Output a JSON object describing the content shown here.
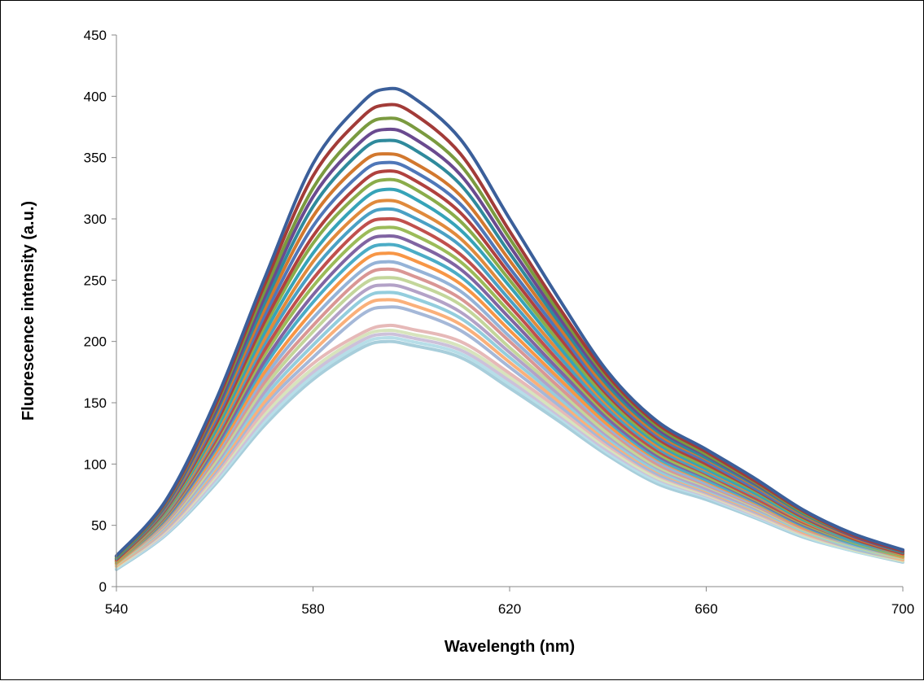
{
  "chart_data": {
    "type": "line",
    "title": "",
    "xlabel": "Wavelength (nm)",
    "ylabel": "Fluorescence intensity (a.u.)",
    "xlim": [
      540,
      700
    ],
    "ylim": [
      0,
      450
    ],
    "xticks": [
      540,
      580,
      620,
      660,
      700
    ],
    "yticks": [
      0,
      50,
      100,
      150,
      200,
      250,
      300,
      350,
      400,
      450
    ],
    "grid": false,
    "legend": "none",
    "x": [
      540,
      550,
      560,
      570,
      580,
      590,
      595,
      600,
      610,
      620,
      630,
      640,
      650,
      660,
      670,
      680,
      690,
      700
    ],
    "series": [
      {
        "color": "#3b5f9a",
        "values": [
          25,
          70,
          150,
          250,
          345,
          395,
          406,
          400,
          365,
          300,
          235,
          175,
          135,
          112,
          88,
          62,
          43,
          30
        ]
      },
      {
        "color": "#a23b38",
        "values": [
          25,
          69,
          147,
          245,
          335,
          383,
          393,
          387,
          353,
          290,
          228,
          172,
          133,
          110,
          86,
          61,
          42,
          29
        ]
      },
      {
        "color": "#7a9a3f",
        "values": [
          24,
          68,
          145,
          240,
          325,
          373,
          382,
          376,
          344,
          284,
          224,
          170,
          131,
          108,
          85,
          60,
          42,
          29
        ]
      },
      {
        "color": "#6a4a8f",
        "values": [
          24,
          67,
          142,
          235,
          318,
          364,
          373,
          367,
          336,
          278,
          220,
          167,
          129,
          107,
          84,
          60,
          41,
          29
        ]
      },
      {
        "color": "#2f8a9c",
        "values": [
          23,
          66,
          140,
          230,
          310,
          356,
          364,
          358,
          328,
          272,
          216,
          164,
          127,
          105,
          83,
          59,
          41,
          28
        ]
      },
      {
        "color": "#d2782e",
        "values": [
          23,
          65,
          137,
          225,
          302,
          346,
          353,
          347,
          319,
          266,
          212,
          161,
          125,
          104,
          82,
          58,
          40,
          28
        ]
      },
      {
        "color": "#4f77b8",
        "values": [
          23,
          64,
          134,
          220,
          294,
          338,
          346,
          340,
          312,
          260,
          208,
          158,
          123,
          102,
          80,
          57,
          40,
          28
        ]
      },
      {
        "color": "#b0413e",
        "values": [
          22,
          63,
          131,
          215,
          286,
          330,
          339,
          333,
          305,
          255,
          204,
          156,
          121,
          100,
          79,
          56,
          39,
          27
        ]
      },
      {
        "color": "#8aac4a",
        "values": [
          22,
          62,
          129,
          211,
          280,
          323,
          332,
          326,
          298,
          250,
          200,
          153,
          119,
          98,
          78,
          55,
          39,
          27
        ]
      },
      {
        "color": "#36a3b8",
        "values": [
          22,
          61,
          126,
          206,
          272,
          315,
          324,
          318,
          291,
          245,
          196,
          150,
          117,
          96,
          76,
          54,
          38,
          27
        ]
      },
      {
        "color": "#e08a3c",
        "values": [
          21,
          60,
          123,
          201,
          265,
          307,
          315,
          309,
          284,
          239,
          192,
          148,
          115,
          95,
          75,
          53,
          38,
          26
        ]
      },
      {
        "color": "#4aa0c4",
        "values": [
          21,
          59,
          121,
          197,
          258,
          300,
          308,
          302,
          278,
          234,
          188,
          145,
          113,
          93,
          74,
          53,
          37,
          26
        ]
      },
      {
        "color": "#c0504d",
        "values": [
          21,
          58,
          118,
          192,
          251,
          293,
          300,
          295,
          271,
          229,
          184,
          142,
          111,
          92,
          72,
          52,
          37,
          26
        ]
      },
      {
        "color": "#9bbb59",
        "values": [
          20,
          57,
          116,
          188,
          245,
          286,
          293,
          288,
          265,
          224,
          181,
          140,
          109,
          90,
          71,
          51,
          36,
          25
        ]
      },
      {
        "color": "#8064a2",
        "values": [
          20,
          56,
          113,
          183,
          238,
          279,
          286,
          281,
          259,
          219,
          177,
          137,
          107,
          89,
          70,
          50,
          36,
          25
        ]
      },
      {
        "color": "#4bacc6",
        "values": [
          20,
          55,
          111,
          179,
          232,
          272,
          279,
          274,
          253,
          214,
          174,
          135,
          105,
          87,
          69,
          49,
          35,
          25
        ]
      },
      {
        "color": "#f79646",
        "values": [
          19,
          54,
          108,
          174,
          225,
          265,
          272,
          267,
          247,
          209,
          170,
          132,
          104,
          86,
          68,
          48,
          35,
          24
        ]
      },
      {
        "color": "#95b3d7",
        "values": [
          19,
          53,
          106,
          170,
          219,
          258,
          265,
          260,
          241,
          204,
          167,
          130,
          102,
          84,
          67,
          48,
          34,
          24
        ]
      },
      {
        "color": "#d99694",
        "values": [
          19,
          52,
          104,
          166,
          213,
          252,
          259,
          254,
          235,
          200,
          163,
          128,
          100,
          83,
          66,
          47,
          34,
          24
        ]
      },
      {
        "color": "#c3d69b",
        "values": [
          18,
          51,
          101,
          162,
          208,
          246,
          252,
          248,
          230,
          195,
          160,
          125,
          98,
          82,
          65,
          46,
          33,
          23
        ]
      },
      {
        "color": "#b3a2c7",
        "values": [
          18,
          50,
          99,
          158,
          202,
          240,
          246,
          242,
          224,
          191,
          157,
          123,
          97,
          80,
          64,
          46,
          33,
          23
        ]
      },
      {
        "color": "#93cddd",
        "values": [
          18,
          49,
          97,
          154,
          197,
          234,
          240,
          236,
          219,
          187,
          154,
          121,
          95,
          79,
          63,
          45,
          32,
          23
        ]
      },
      {
        "color": "#fab07a",
        "values": [
          17,
          48,
          95,
          150,
          192,
          228,
          234,
          230,
          214,
          183,
          151,
          119,
          94,
          78,
          62,
          44,
          32,
          22
        ]
      },
      {
        "color": "#a5b8d8",
        "values": [
          17,
          47,
          93,
          147,
          187,
          222,
          228,
          225,
          209,
          179,
          148,
          117,
          92,
          77,
          61,
          44,
          31,
          22
        ]
      },
      {
        "color": "#e6b9b8",
        "values": [
          17,
          46,
          91,
          143,
          182,
          207,
          213,
          210,
          200,
          174,
          145,
          115,
          91,
          76,
          60,
          43,
          31,
          22
        ]
      },
      {
        "color": "#d7e4bd",
        "values": [
          16,
          45,
          89,
          140,
          178,
          204,
          209,
          206,
          196,
          171,
          142,
          113,
          89,
          75,
          59,
          42,
          30,
          21
        ]
      },
      {
        "color": "#ccc1da",
        "values": [
          16,
          44,
          87,
          137,
          175,
          201,
          206,
          203,
          193,
          168,
          140,
          111,
          88,
          74,
          58,
          42,
          30,
          21
        ]
      },
      {
        "color": "#b7dee8",
        "values": [
          15,
          43,
          85,
          134,
          172,
          198,
          203,
          200,
          190,
          165,
          138,
          109,
          86,
          73,
          57,
          41,
          29,
          21
        ]
      },
      {
        "color": "#a8cedb",
        "values": [
          14,
          42,
          83,
          131,
          169,
          195,
          200,
          197,
          187,
          162,
          135,
          107,
          84,
          71,
          56,
          40,
          29,
          20
        ]
      }
    ]
  }
}
